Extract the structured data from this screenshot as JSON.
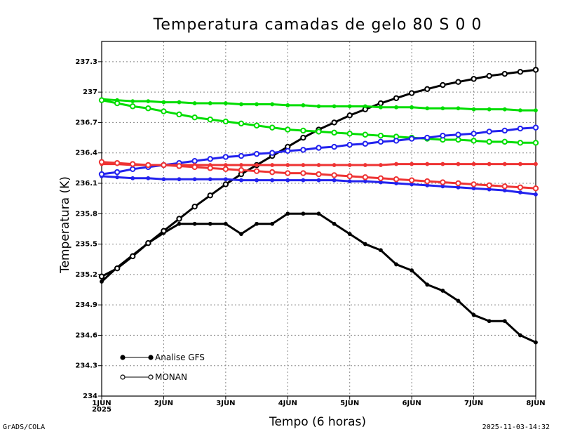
{
  "chart_data": {
    "type": "line",
    "title": "Temperatura camadas de gelo 80 S 0 0",
    "xlabel": "Tempo (6 horas)",
    "ylabel": "Temperatura (K)",
    "ylim": [
      234,
      237.5
    ],
    "xlim": [
      0,
      28
    ],
    "x_ticks": [
      {
        "x": 0,
        "label": "1JUN",
        "sublabel": "2025"
      },
      {
        "x": 4,
        "label": "2JUN"
      },
      {
        "x": 8,
        "label": "3JUN"
      },
      {
        "x": 12,
        "label": "4JUN"
      },
      {
        "x": 16,
        "label": "5JUN"
      },
      {
        "x": 20,
        "label": "6JUN"
      },
      {
        "x": 24,
        "label": "7JUN"
      },
      {
        "x": 28,
        "label": "8JUN"
      }
    ],
    "y_ticks": [
      {
        "value": 234,
        "label": "234"
      },
      {
        "value": 234.3,
        "label": "234.3"
      },
      {
        "value": 234.6,
        "label": "234.6"
      },
      {
        "value": 234.9,
        "label": "234.9"
      },
      {
        "value": 235.2,
        "label": "235.2"
      },
      {
        "value": 235.5,
        "label": "235.5"
      },
      {
        "value": 235.8,
        "label": "235.8"
      },
      {
        "value": 236.1,
        "label": "236.1"
      },
      {
        "value": 236.4,
        "label": "236.4"
      },
      {
        "value": 236.7,
        "label": "236.7"
      },
      {
        "value": 237,
        "label": "237"
      },
      {
        "value": 237.3,
        "label": "237.3"
      }
    ],
    "grid": true,
    "legend": [
      {
        "label": "Analise GFS",
        "marker": "filled"
      },
      {
        "label": "MONAN",
        "marker": "open"
      }
    ],
    "series": [
      {
        "name": "Analise GFS",
        "color": "#000000",
        "marker": "filled",
        "values": [
          235.13,
          235.27,
          235.39,
          235.51,
          235.61,
          235.7,
          235.7,
          235.7,
          235.7,
          235.6,
          235.7,
          235.7,
          235.8,
          235.8,
          235.8,
          235.7,
          235.6,
          235.5,
          235.44,
          235.3,
          235.24,
          235.1,
          235.04,
          234.94,
          234.8,
          234.74,
          234.74,
          234.6,
          234.53
        ]
      },
      {
        "name": "MONAN",
        "color": "#000000",
        "marker": "open",
        "values": [
          235.18,
          235.26,
          235.38,
          235.51,
          235.63,
          235.75,
          235.87,
          235.98,
          236.09,
          236.19,
          236.28,
          236.37,
          236.46,
          236.55,
          236.63,
          236.7,
          236.77,
          236.83,
          236.89,
          236.94,
          236.99,
          237.03,
          237.07,
          237.1,
          237.13,
          237.16,
          237.18,
          237.2,
          237.22
        ]
      },
      {
        "name": "Analise GFS",
        "color": "#00dd00",
        "marker": "filled",
        "values": [
          236.93,
          236.92,
          236.91,
          236.91,
          236.9,
          236.9,
          236.89,
          236.89,
          236.89,
          236.88,
          236.88,
          236.88,
          236.87,
          236.87,
          236.86,
          236.86,
          236.86,
          236.86,
          236.85,
          236.85,
          236.85,
          236.84,
          236.84,
          236.84,
          236.83,
          236.83,
          236.83,
          236.82,
          236.82
        ]
      },
      {
        "name": "MONAN",
        "color": "#00dd00",
        "marker": "open",
        "values": [
          236.92,
          236.89,
          236.86,
          236.84,
          236.81,
          236.78,
          236.75,
          236.73,
          236.71,
          236.69,
          236.67,
          236.65,
          236.63,
          236.62,
          236.61,
          236.6,
          236.59,
          236.58,
          236.57,
          236.56,
          236.55,
          236.54,
          236.53,
          236.53,
          236.52,
          236.51,
          236.51,
          236.5,
          236.5
        ]
      },
      {
        "name": "Analise GFS",
        "color": "#2222ee",
        "marker": "filled",
        "values": [
          236.17,
          236.16,
          236.15,
          236.15,
          236.14,
          236.14,
          236.14,
          236.14,
          236.14,
          236.13,
          236.13,
          236.13,
          236.13,
          236.13,
          236.13,
          236.13,
          236.12,
          236.12,
          236.11,
          236.1,
          236.09,
          236.08,
          236.07,
          236.06,
          236.05,
          236.04,
          236.03,
          236.01,
          235.99
        ]
      },
      {
        "name": "MONAN",
        "color": "#2222ee",
        "marker": "open",
        "values": [
          236.19,
          236.21,
          236.24,
          236.26,
          236.28,
          236.3,
          236.32,
          236.34,
          236.36,
          236.37,
          236.39,
          236.4,
          236.42,
          236.43,
          236.45,
          236.46,
          236.48,
          236.49,
          236.51,
          236.52,
          236.54,
          236.55,
          236.57,
          236.58,
          236.59,
          236.61,
          236.62,
          236.64,
          236.65
        ]
      },
      {
        "name": "Analise GFS",
        "color": "#ee3333",
        "marker": "filled",
        "values": [
          236.29,
          236.29,
          236.28,
          236.28,
          236.28,
          236.28,
          236.28,
          236.28,
          236.28,
          236.28,
          236.28,
          236.28,
          236.28,
          236.28,
          236.28,
          236.28,
          236.28,
          236.28,
          236.28,
          236.29,
          236.29,
          236.29,
          236.29,
          236.29,
          236.29,
          236.29,
          236.29,
          236.29,
          236.29
        ]
      },
      {
        "name": "MONAN",
        "color": "#ee3333",
        "marker": "open",
        "values": [
          236.31,
          236.3,
          236.29,
          236.28,
          236.28,
          236.27,
          236.26,
          236.25,
          236.24,
          236.23,
          236.22,
          236.21,
          236.2,
          236.2,
          236.19,
          236.18,
          236.17,
          236.16,
          236.15,
          236.14,
          236.13,
          236.12,
          236.11,
          236.1,
          236.09,
          236.08,
          236.07,
          236.06,
          236.05
        ]
      }
    ]
  },
  "footer": {
    "left": "GrADS/COLA",
    "right": "2025-11-03-14:32"
  }
}
